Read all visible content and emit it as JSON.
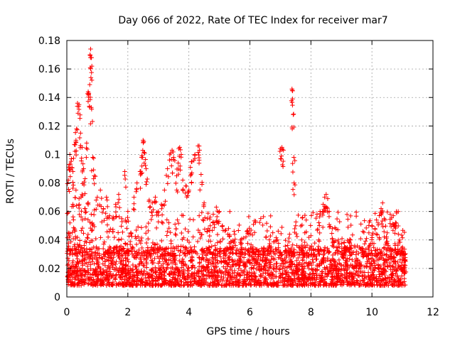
{
  "chart_data": {
    "type": "scatter",
    "title": "Day 066 of 2022, Rate Of TEC Index for receiver mar7",
    "xlabel": "GPS time / hours",
    "ylabel": "ROTI / TECUs",
    "xlim": [
      0,
      12
    ],
    "ylim": [
      0,
      0.18
    ],
    "x_ticks": [
      0,
      2,
      4,
      6,
      8,
      10,
      12
    ],
    "y_ticks": [
      0,
      0.02,
      0.04,
      0.06,
      0.08,
      0.1,
      0.12,
      0.14,
      0.16,
      0.18
    ],
    "x_tick_labels": [
      "0",
      "2",
      "4",
      "6",
      "8",
      "10",
      "12"
    ],
    "y_tick_labels": [
      "0",
      "0.02",
      "0.04",
      "0.06",
      "0.08",
      "0.1",
      "0.12",
      "0.14",
      "0.16",
      "0.18"
    ],
    "grid": true,
    "marker": "+",
    "color": "#ff0000",
    "data_x_range": [
      0.0,
      11.1
    ],
    "series": [
      {
        "name": "ROTI",
        "points": [
          [
            0.05,
            0.082
          ],
          [
            0.08,
            0.093
          ],
          [
            0.1,
            0.1
          ],
          [
            0.15,
            0.097
          ],
          [
            0.2,
            0.088
          ],
          [
            0.25,
            0.107
          ],
          [
            0.3,
            0.11
          ],
          [
            0.32,
            0.118
          ],
          [
            0.35,
            0.136
          ],
          [
            0.4,
            0.135
          ],
          [
            0.45,
            0.115
          ],
          [
            0.5,
            0.105
          ],
          [
            0.55,
            0.09
          ],
          [
            0.6,
            0.083
          ],
          [
            0.65,
            0.108
          ],
          [
            0.7,
            0.144
          ],
          [
            0.72,
            0.143
          ],
          [
            0.75,
            0.149
          ],
          [
            0.78,
            0.174
          ],
          [
            0.8,
            0.168
          ],
          [
            0.82,
            0.162
          ],
          [
            0.8,
            0.133
          ],
          [
            0.85,
            0.098
          ],
          [
            0.9,
            0.085
          ],
          [
            1.0,
            0.07
          ],
          [
            0.05,
            0.045
          ],
          [
            0.1,
            0.052
          ],
          [
            0.2,
            0.065
          ],
          [
            0.3,
            0.075
          ],
          [
            0.4,
            0.069
          ],
          [
            0.5,
            0.072
          ],
          [
            0.6,
            0.062
          ],
          [
            0.7,
            0.066
          ],
          [
            0.8,
            0.058
          ],
          [
            0.9,
            0.061
          ],
          [
            1.1,
            0.075
          ],
          [
            1.2,
            0.062
          ],
          [
            1.3,
            0.07
          ],
          [
            1.4,
            0.057
          ],
          [
            1.5,
            0.055
          ],
          [
            1.6,
            0.065
          ],
          [
            1.7,
            0.072
          ],
          [
            1.8,
            0.055
          ],
          [
            1.9,
            0.088
          ],
          [
            2.0,
            0.06
          ],
          [
            2.1,
            0.045
          ],
          [
            2.2,
            0.07
          ],
          [
            2.3,
            0.08
          ],
          [
            2.4,
            0.088
          ],
          [
            2.45,
            0.098
          ],
          [
            2.5,
            0.11
          ],
          [
            2.52,
            0.109
          ],
          [
            2.55,
            0.101
          ],
          [
            2.6,
            0.09
          ],
          [
            2.7,
            0.068
          ],
          [
            2.8,
            0.066
          ],
          [
            2.9,
            0.07
          ],
          [
            3.0,
            0.06
          ],
          [
            3.1,
            0.065
          ],
          [
            3.2,
            0.075
          ],
          [
            3.3,
            0.09
          ],
          [
            3.4,
            0.101
          ],
          [
            3.45,
            0.103
          ],
          [
            3.5,
            0.098
          ],
          [
            3.6,
            0.085
          ],
          [
            3.65,
            0.094
          ],
          [
            3.7,
            0.105
          ],
          [
            3.75,
            0.1
          ],
          [
            3.8,
            0.082
          ],
          [
            3.9,
            0.078
          ],
          [
            4.0,
            0.075
          ],
          [
            4.05,
            0.091
          ],
          [
            4.1,
            0.095
          ],
          [
            4.2,
            0.1
          ],
          [
            4.3,
            0.106
          ],
          [
            4.35,
            0.103
          ],
          [
            4.4,
            0.086
          ],
          [
            4.5,
            0.066
          ],
          [
            4.6,
            0.055
          ],
          [
            4.7,
            0.05
          ],
          [
            4.8,
            0.058
          ],
          [
            4.9,
            0.063
          ],
          [
            5.0,
            0.06
          ],
          [
            5.1,
            0.05
          ],
          [
            5.3,
            0.048
          ],
          [
            5.5,
            0.044
          ],
          [
            5.7,
            0.04
          ],
          [
            5.9,
            0.046
          ],
          [
            6.1,
            0.035
          ],
          [
            6.3,
            0.03
          ],
          [
            6.5,
            0.032
          ],
          [
            6.7,
            0.035
          ],
          [
            6.9,
            0.04
          ],
          [
            7.0,
            0.104
          ],
          [
            7.05,
            0.105
          ],
          [
            7.1,
            0.103
          ],
          [
            7.3,
            0.044
          ],
          [
            7.38,
            0.146
          ],
          [
            7.4,
            0.139
          ],
          [
            7.42,
            0.128
          ],
          [
            7.44,
            0.098
          ],
          [
            7.45,
            0.08
          ],
          [
            7.5,
            0.05
          ],
          [
            7.6,
            0.035
          ],
          [
            7.7,
            0.04
          ],
          [
            7.8,
            0.045
          ],
          [
            8.0,
            0.043
          ],
          [
            8.2,
            0.058
          ],
          [
            8.3,
            0.06
          ],
          [
            8.4,
            0.065
          ],
          [
            8.45,
            0.07
          ],
          [
            8.5,
            0.072
          ],
          [
            8.55,
            0.069
          ],
          [
            8.6,
            0.06
          ],
          [
            8.7,
            0.048
          ],
          [
            8.9,
            0.04
          ],
          [
            9.1,
            0.035
          ],
          [
            9.3,
            0.04
          ],
          [
            9.5,
            0.032
          ],
          [
            9.7,
            0.034
          ],
          [
            9.9,
            0.045
          ],
          [
            10.0,
            0.05
          ],
          [
            10.1,
            0.048
          ],
          [
            10.2,
            0.052
          ],
          [
            10.3,
            0.062
          ],
          [
            10.35,
            0.066
          ],
          [
            10.4,
            0.055
          ],
          [
            10.5,
            0.045
          ],
          [
            10.6,
            0.058
          ],
          [
            10.7,
            0.057
          ],
          [
            10.8,
            0.06
          ],
          [
            10.9,
            0.04
          ],
          [
            11.0,
            0.035
          ],
          [
            11.05,
            0.03
          ],
          [
            11.1,
            0.025
          ]
        ],
        "baseline_band": [
          0.008,
          0.035
        ],
        "density_note": "dense band of ROTI values between roughly 0.01 and 0.03 TECUs across the full time range"
      }
    ]
  }
}
